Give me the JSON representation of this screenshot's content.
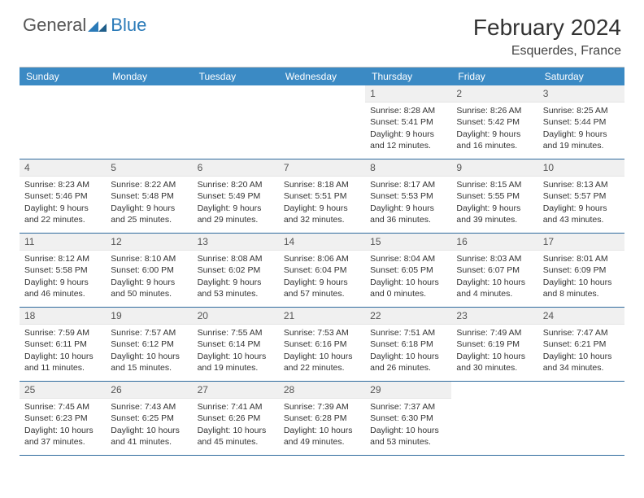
{
  "brand": {
    "text1": "General",
    "text2": "Blue"
  },
  "title": "February 2024",
  "location": "Esquerdes, France",
  "colors": {
    "header_band": "#3b8ac4",
    "week_border": "#2f6b9e",
    "daynum_bg": "#f0f0f0",
    "logo_gray": "#555555",
    "logo_blue": "#2a7ab8"
  },
  "day_headers": [
    "Sunday",
    "Monday",
    "Tuesday",
    "Wednesday",
    "Thursday",
    "Friday",
    "Saturday"
  ],
  "weeks": [
    [
      {
        "empty": true
      },
      {
        "empty": true
      },
      {
        "empty": true
      },
      {
        "empty": true
      },
      {
        "n": "1",
        "sunrise": "Sunrise: 8:28 AM",
        "sunset": "Sunset: 5:41 PM",
        "day1": "Daylight: 9 hours",
        "day2": "and 12 minutes."
      },
      {
        "n": "2",
        "sunrise": "Sunrise: 8:26 AM",
        "sunset": "Sunset: 5:42 PM",
        "day1": "Daylight: 9 hours",
        "day2": "and 16 minutes."
      },
      {
        "n": "3",
        "sunrise": "Sunrise: 8:25 AM",
        "sunset": "Sunset: 5:44 PM",
        "day1": "Daylight: 9 hours",
        "day2": "and 19 minutes."
      }
    ],
    [
      {
        "n": "4",
        "sunrise": "Sunrise: 8:23 AM",
        "sunset": "Sunset: 5:46 PM",
        "day1": "Daylight: 9 hours",
        "day2": "and 22 minutes."
      },
      {
        "n": "5",
        "sunrise": "Sunrise: 8:22 AM",
        "sunset": "Sunset: 5:48 PM",
        "day1": "Daylight: 9 hours",
        "day2": "and 25 minutes."
      },
      {
        "n": "6",
        "sunrise": "Sunrise: 8:20 AM",
        "sunset": "Sunset: 5:49 PM",
        "day1": "Daylight: 9 hours",
        "day2": "and 29 minutes."
      },
      {
        "n": "7",
        "sunrise": "Sunrise: 8:18 AM",
        "sunset": "Sunset: 5:51 PM",
        "day1": "Daylight: 9 hours",
        "day2": "and 32 minutes."
      },
      {
        "n": "8",
        "sunrise": "Sunrise: 8:17 AM",
        "sunset": "Sunset: 5:53 PM",
        "day1": "Daylight: 9 hours",
        "day2": "and 36 minutes."
      },
      {
        "n": "9",
        "sunrise": "Sunrise: 8:15 AM",
        "sunset": "Sunset: 5:55 PM",
        "day1": "Daylight: 9 hours",
        "day2": "and 39 minutes."
      },
      {
        "n": "10",
        "sunrise": "Sunrise: 8:13 AM",
        "sunset": "Sunset: 5:57 PM",
        "day1": "Daylight: 9 hours",
        "day2": "and 43 minutes."
      }
    ],
    [
      {
        "n": "11",
        "sunrise": "Sunrise: 8:12 AM",
        "sunset": "Sunset: 5:58 PM",
        "day1": "Daylight: 9 hours",
        "day2": "and 46 minutes."
      },
      {
        "n": "12",
        "sunrise": "Sunrise: 8:10 AM",
        "sunset": "Sunset: 6:00 PM",
        "day1": "Daylight: 9 hours",
        "day2": "and 50 minutes."
      },
      {
        "n": "13",
        "sunrise": "Sunrise: 8:08 AM",
        "sunset": "Sunset: 6:02 PM",
        "day1": "Daylight: 9 hours",
        "day2": "and 53 minutes."
      },
      {
        "n": "14",
        "sunrise": "Sunrise: 8:06 AM",
        "sunset": "Sunset: 6:04 PM",
        "day1": "Daylight: 9 hours",
        "day2": "and 57 minutes."
      },
      {
        "n": "15",
        "sunrise": "Sunrise: 8:04 AM",
        "sunset": "Sunset: 6:05 PM",
        "day1": "Daylight: 10 hours",
        "day2": "and 0 minutes."
      },
      {
        "n": "16",
        "sunrise": "Sunrise: 8:03 AM",
        "sunset": "Sunset: 6:07 PM",
        "day1": "Daylight: 10 hours",
        "day2": "and 4 minutes."
      },
      {
        "n": "17",
        "sunrise": "Sunrise: 8:01 AM",
        "sunset": "Sunset: 6:09 PM",
        "day1": "Daylight: 10 hours",
        "day2": "and 8 minutes."
      }
    ],
    [
      {
        "n": "18",
        "sunrise": "Sunrise: 7:59 AM",
        "sunset": "Sunset: 6:11 PM",
        "day1": "Daylight: 10 hours",
        "day2": "and 11 minutes."
      },
      {
        "n": "19",
        "sunrise": "Sunrise: 7:57 AM",
        "sunset": "Sunset: 6:12 PM",
        "day1": "Daylight: 10 hours",
        "day2": "and 15 minutes."
      },
      {
        "n": "20",
        "sunrise": "Sunrise: 7:55 AM",
        "sunset": "Sunset: 6:14 PM",
        "day1": "Daylight: 10 hours",
        "day2": "and 19 minutes."
      },
      {
        "n": "21",
        "sunrise": "Sunrise: 7:53 AM",
        "sunset": "Sunset: 6:16 PM",
        "day1": "Daylight: 10 hours",
        "day2": "and 22 minutes."
      },
      {
        "n": "22",
        "sunrise": "Sunrise: 7:51 AM",
        "sunset": "Sunset: 6:18 PM",
        "day1": "Daylight: 10 hours",
        "day2": "and 26 minutes."
      },
      {
        "n": "23",
        "sunrise": "Sunrise: 7:49 AM",
        "sunset": "Sunset: 6:19 PM",
        "day1": "Daylight: 10 hours",
        "day2": "and 30 minutes."
      },
      {
        "n": "24",
        "sunrise": "Sunrise: 7:47 AM",
        "sunset": "Sunset: 6:21 PM",
        "day1": "Daylight: 10 hours",
        "day2": "and 34 minutes."
      }
    ],
    [
      {
        "n": "25",
        "sunrise": "Sunrise: 7:45 AM",
        "sunset": "Sunset: 6:23 PM",
        "day1": "Daylight: 10 hours",
        "day2": "and 37 minutes."
      },
      {
        "n": "26",
        "sunrise": "Sunrise: 7:43 AM",
        "sunset": "Sunset: 6:25 PM",
        "day1": "Daylight: 10 hours",
        "day2": "and 41 minutes."
      },
      {
        "n": "27",
        "sunrise": "Sunrise: 7:41 AM",
        "sunset": "Sunset: 6:26 PM",
        "day1": "Daylight: 10 hours",
        "day2": "and 45 minutes."
      },
      {
        "n": "28",
        "sunrise": "Sunrise: 7:39 AM",
        "sunset": "Sunset: 6:28 PM",
        "day1": "Daylight: 10 hours",
        "day2": "and 49 minutes."
      },
      {
        "n": "29",
        "sunrise": "Sunrise: 7:37 AM",
        "sunset": "Sunset: 6:30 PM",
        "day1": "Daylight: 10 hours",
        "day2": "and 53 minutes."
      },
      {
        "empty": true
      },
      {
        "empty": true
      }
    ]
  ]
}
